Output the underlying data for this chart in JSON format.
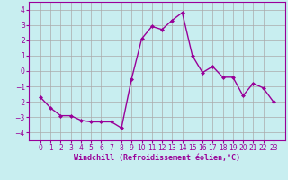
{
  "x": [
    0,
    1,
    2,
    3,
    4,
    5,
    6,
    7,
    8,
    9,
    10,
    11,
    12,
    13,
    14,
    15,
    16,
    17,
    18,
    19,
    20,
    21,
    22,
    23
  ],
  "y": [
    -1.7,
    -2.4,
    -2.9,
    -2.9,
    -3.2,
    -3.3,
    -3.3,
    -3.3,
    -3.7,
    -0.5,
    2.1,
    2.9,
    2.7,
    3.3,
    3.8,
    1.0,
    -0.1,
    0.3,
    -0.4,
    -0.4,
    -1.6,
    -0.8,
    -1.1,
    -2.0
  ],
  "line_color": "#990099",
  "marker": "D",
  "marker_size": 2,
  "xlabel": "Windchill (Refroidissement éolien,°C)",
  "xlabel_fontsize": 6,
  "ylim": [
    -4.5,
    4.5
  ],
  "yticks": [
    -4,
    -3,
    -2,
    -1,
    0,
    1,
    2,
    3,
    4
  ],
  "xticks": [
    0,
    1,
    2,
    3,
    4,
    5,
    6,
    7,
    8,
    9,
    10,
    11,
    12,
    13,
    14,
    15,
    16,
    17,
    18,
    19,
    20,
    21,
    22,
    23
  ],
  "grid_color": "#aaaaaa",
  "background_color": "#c8eef0",
  "axis_color": "#990099",
  "tick_fontsize": 5.5,
  "linewidth": 1.0
}
